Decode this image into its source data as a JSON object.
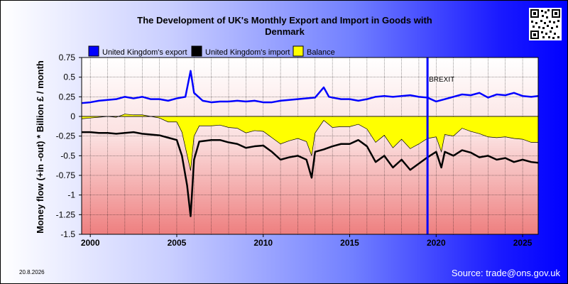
{
  "date_stamp": "20.8.2026",
  "source": "Source: trade@ons.gov.uk",
  "colors": {
    "export": "#0000ff",
    "import": "#000000",
    "balance": "#ffff00",
    "brexit_line": "#0000ff"
  },
  "chart_data": {
    "type": "line",
    "title": "The Development of UK's Monthly Export and Import in Goods with Denmark",
    "title_lines": [
      "The Development of UK's Monthly Export and Import in Goods with",
      "Denmark"
    ],
    "ylabel": "Money flow (+in -out) * Billion £ / month",
    "xlabel": "",
    "xlim": [
      1999.5,
      2025.9
    ],
    "ylim": [
      -1.5,
      0.75
    ],
    "yticks": [
      0.75,
      0.5,
      0.25,
      0,
      -0.25,
      -0.5,
      -0.75,
      -1,
      -1.25,
      -1.5
    ],
    "ytick_labels": [
      "0.75",
      "0.5",
      "0.25",
      "0",
      "-0.25",
      "-0.5",
      "-0.75",
      "-1",
      "-1.25",
      "-1.5"
    ],
    "xticks": [
      2000,
      2005,
      2010,
      2015,
      2020,
      2025
    ],
    "xtick_labels": [
      "2000",
      "2005",
      "2010",
      "2015",
      "2020",
      "2025"
    ],
    "grid": true,
    "legend_position": "top-left",
    "annotation": {
      "label": "BREXIT",
      "x": 2019.5
    },
    "series": [
      {
        "name": "United Kingdom's export",
        "points": [
          [
            1999.5,
            0.17
          ],
          [
            2000.0,
            0.18
          ],
          [
            2000.5,
            0.2
          ],
          [
            2001.0,
            0.21
          ],
          [
            2001.5,
            0.22
          ],
          [
            2002.0,
            0.25
          ],
          [
            2002.5,
            0.23
          ],
          [
            2003.0,
            0.25
          ],
          [
            2003.5,
            0.22
          ],
          [
            2004.0,
            0.22
          ],
          [
            2004.5,
            0.2
          ],
          [
            2005.0,
            0.23
          ],
          [
            2005.5,
            0.25
          ],
          [
            2005.8,
            0.58
          ],
          [
            2006.0,
            0.3
          ],
          [
            2006.5,
            0.2
          ],
          [
            2007.0,
            0.18
          ],
          [
            2007.5,
            0.19
          ],
          [
            2008.0,
            0.19
          ],
          [
            2008.5,
            0.2
          ],
          [
            2009.0,
            0.19
          ],
          [
            2009.5,
            0.2
          ],
          [
            2010.0,
            0.18
          ],
          [
            2010.5,
            0.18
          ],
          [
            2011.0,
            0.2
          ],
          [
            2011.5,
            0.21
          ],
          [
            2012.0,
            0.22
          ],
          [
            2012.5,
            0.23
          ],
          [
            2013.0,
            0.24
          ],
          [
            2013.5,
            0.37
          ],
          [
            2013.8,
            0.25
          ],
          [
            2014.0,
            0.24
          ],
          [
            2014.5,
            0.22
          ],
          [
            2015.0,
            0.22
          ],
          [
            2015.5,
            0.2
          ],
          [
            2016.0,
            0.22
          ],
          [
            2016.5,
            0.25
          ],
          [
            2017.0,
            0.26
          ],
          [
            2017.5,
            0.25
          ],
          [
            2018.0,
            0.26
          ],
          [
            2018.5,
            0.27
          ],
          [
            2019.0,
            0.25
          ],
          [
            2019.5,
            0.24
          ],
          [
            2020.0,
            0.19
          ],
          [
            2020.5,
            0.22
          ],
          [
            2021.0,
            0.25
          ],
          [
            2021.5,
            0.28
          ],
          [
            2022.0,
            0.27
          ],
          [
            2022.5,
            0.3
          ],
          [
            2023.0,
            0.24
          ],
          [
            2023.5,
            0.28
          ],
          [
            2024.0,
            0.27
          ],
          [
            2024.5,
            0.3
          ],
          [
            2025.0,
            0.26
          ],
          [
            2025.5,
            0.25
          ],
          [
            2025.9,
            0.26
          ]
        ]
      },
      {
        "name": "United Kingdom's import",
        "points": [
          [
            1999.5,
            -0.2
          ],
          [
            2000.0,
            -0.2
          ],
          [
            2000.5,
            -0.21
          ],
          [
            2001.0,
            -0.21
          ],
          [
            2001.5,
            -0.22
          ],
          [
            2002.0,
            -0.21
          ],
          [
            2002.5,
            -0.2
          ],
          [
            2003.0,
            -0.22
          ],
          [
            2003.5,
            -0.23
          ],
          [
            2004.0,
            -0.24
          ],
          [
            2004.5,
            -0.27
          ],
          [
            2005.0,
            -0.3
          ],
          [
            2005.3,
            -0.5
          ],
          [
            2005.6,
            -0.88
          ],
          [
            2005.8,
            -1.27
          ],
          [
            2006.0,
            -0.55
          ],
          [
            2006.3,
            -0.32
          ],
          [
            2007.0,
            -0.3
          ],
          [
            2007.5,
            -0.3
          ],
          [
            2008.0,
            -0.33
          ],
          [
            2008.5,
            -0.35
          ],
          [
            2009.0,
            -0.4
          ],
          [
            2009.5,
            -0.38
          ],
          [
            2010.0,
            -0.37
          ],
          [
            2010.5,
            -0.45
          ],
          [
            2011.0,
            -0.55
          ],
          [
            2011.5,
            -0.52
          ],
          [
            2012.0,
            -0.5
          ],
          [
            2012.5,
            -0.55
          ],
          [
            2012.8,
            -0.78
          ],
          [
            2013.0,
            -0.45
          ],
          [
            2013.5,
            -0.42
          ],
          [
            2014.0,
            -0.38
          ],
          [
            2014.5,
            -0.35
          ],
          [
            2015.0,
            -0.35
          ],
          [
            2015.5,
            -0.3
          ],
          [
            2016.0,
            -0.38
          ],
          [
            2016.5,
            -0.58
          ],
          [
            2017.0,
            -0.5
          ],
          [
            2017.5,
            -0.65
          ],
          [
            2018.0,
            -0.55
          ],
          [
            2018.5,
            -0.68
          ],
          [
            2019.0,
            -0.6
          ],
          [
            2019.5,
            -0.52
          ],
          [
            2020.0,
            -0.45
          ],
          [
            2020.3,
            -0.65
          ],
          [
            2020.5,
            -0.45
          ],
          [
            2021.0,
            -0.5
          ],
          [
            2021.5,
            -0.43
          ],
          [
            2022.0,
            -0.46
          ],
          [
            2022.5,
            -0.52
          ],
          [
            2023.0,
            -0.5
          ],
          [
            2023.5,
            -0.55
          ],
          [
            2024.0,
            -0.53
          ],
          [
            2024.5,
            -0.58
          ],
          [
            2025.0,
            -0.55
          ],
          [
            2025.5,
            -0.58
          ],
          [
            2025.9,
            -0.59
          ]
        ]
      },
      {
        "name": "Balance",
        "points": [
          [
            1999.5,
            -0.03
          ],
          [
            2000.0,
            -0.02
          ],
          [
            2000.5,
            -0.01
          ],
          [
            2001.0,
            0.0
          ],
          [
            2001.5,
            -0.01
          ],
          [
            2002.0,
            0.03
          ],
          [
            2002.5,
            0.02
          ],
          [
            2003.0,
            0.02
          ],
          [
            2003.5,
            0.0
          ],
          [
            2004.0,
            -0.02
          ],
          [
            2004.5,
            -0.07
          ],
          [
            2005.0,
            -0.07
          ],
          [
            2005.3,
            -0.2
          ],
          [
            2005.8,
            -0.69
          ],
          [
            2006.0,
            -0.25
          ],
          [
            2006.3,
            -0.12
          ],
          [
            2007.0,
            -0.12
          ],
          [
            2007.5,
            -0.11
          ],
          [
            2008.0,
            -0.14
          ],
          [
            2008.5,
            -0.15
          ],
          [
            2009.0,
            -0.21
          ],
          [
            2009.5,
            -0.18
          ],
          [
            2010.0,
            -0.19
          ],
          [
            2010.5,
            -0.27
          ],
          [
            2011.0,
            -0.35
          ],
          [
            2011.5,
            -0.31
          ],
          [
            2012.0,
            -0.28
          ],
          [
            2012.5,
            -0.32
          ],
          [
            2012.8,
            -0.5
          ],
          [
            2013.0,
            -0.21
          ],
          [
            2013.5,
            -0.05
          ],
          [
            2014.0,
            -0.14
          ],
          [
            2014.5,
            -0.13
          ],
          [
            2015.0,
            -0.13
          ],
          [
            2015.5,
            -0.1
          ],
          [
            2016.0,
            -0.16
          ],
          [
            2016.5,
            -0.33
          ],
          [
            2017.0,
            -0.24
          ],
          [
            2017.5,
            -0.4
          ],
          [
            2018.0,
            -0.29
          ],
          [
            2018.5,
            -0.41
          ],
          [
            2019.0,
            -0.35
          ],
          [
            2019.5,
            -0.28
          ],
          [
            2020.0,
            -0.26
          ],
          [
            2020.3,
            -0.45
          ],
          [
            2020.5,
            -0.23
          ],
          [
            2021.0,
            -0.25
          ],
          [
            2021.5,
            -0.15
          ],
          [
            2022.0,
            -0.19
          ],
          [
            2022.5,
            -0.22
          ],
          [
            2023.0,
            -0.26
          ],
          [
            2023.5,
            -0.27
          ],
          [
            2024.0,
            -0.26
          ],
          [
            2024.5,
            -0.28
          ],
          [
            2025.0,
            -0.29
          ],
          [
            2025.5,
            -0.33
          ],
          [
            2025.9,
            -0.33
          ]
        ]
      }
    ]
  }
}
